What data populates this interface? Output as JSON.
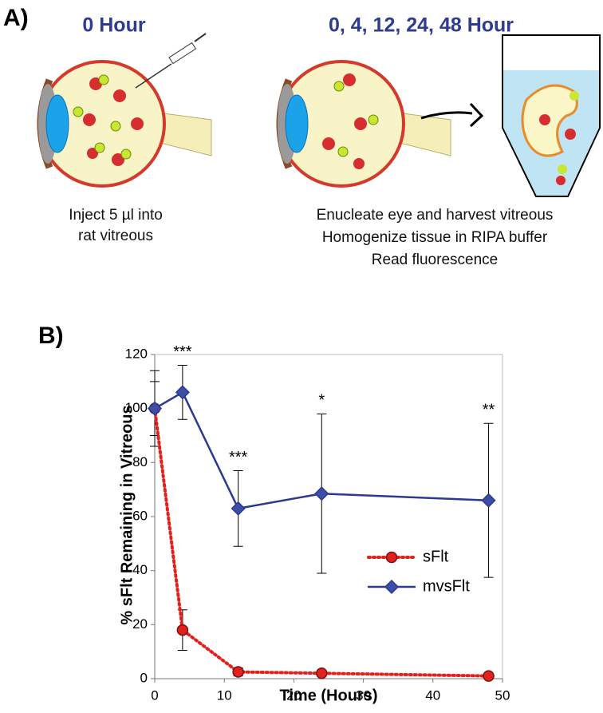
{
  "panel_a": {
    "label": "A)",
    "left_heading": "0 Hour",
    "right_heading": "0, 4, 12, 24, 48 Hour",
    "left_caption": [
      "Inject 5 µl into",
      "rat vitreous"
    ],
    "right_caption": [
      "Enucleate eye and harvest vitreous",
      "Homogenize tissue in RIPA buffer",
      "Read fluorescence"
    ]
  },
  "panel_b": {
    "label": "B)"
  },
  "chart_data": {
    "type": "line",
    "x_label": "Time (Hours)",
    "y_label": "% sFlt Remaining in Vitreous",
    "x": [
      0,
      4,
      12,
      24,
      48
    ],
    "series": [
      {
        "name": "sFlt",
        "color": "#e3211c",
        "line_style": "dotted",
        "marker": "circle",
        "values": [
          100,
          18,
          2.5,
          2,
          1
        ],
        "errors": [
          10,
          7.5,
          1.5,
          1,
          0.5
        ]
      },
      {
        "name": "mvsFlt",
        "color": "#2b3990",
        "line_style": "solid",
        "marker": "diamond",
        "values": [
          100,
          106,
          63,
          68.5,
          66
        ],
        "errors": [
          14,
          10,
          14,
          29.5,
          28.5
        ]
      }
    ],
    "annotations": [
      {
        "text": "***",
        "x": 4
      },
      {
        "text": "***",
        "x": 12
      },
      {
        "text": "*",
        "x": 24
      },
      {
        "text": "**",
        "x": 48
      }
    ],
    "xlim": [
      0,
      50
    ],
    "xticks": [
      0,
      10,
      20,
      30,
      40,
      50
    ],
    "ylim": [
      0,
      120
    ],
    "yticks": [
      0,
      20,
      40,
      60,
      80,
      100,
      120
    ],
    "grid": false,
    "legend": "center-right"
  }
}
